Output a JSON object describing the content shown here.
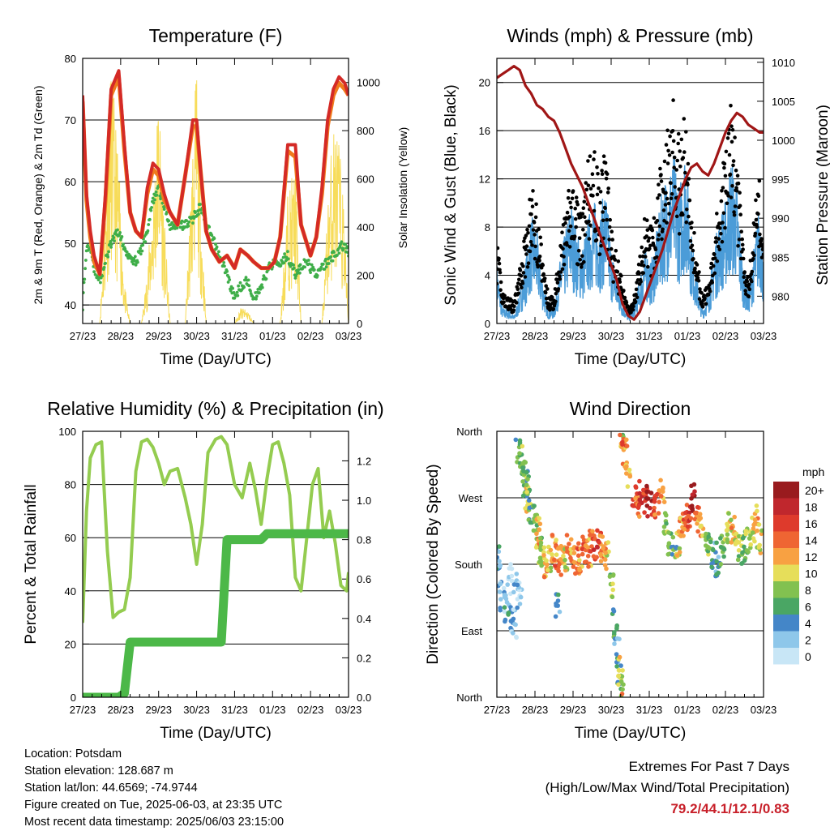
{
  "x_ticks": [
    "27/23",
    "28/23",
    "29/23",
    "30/23",
    "31/23",
    "01/23",
    "02/23",
    "03/23"
  ],
  "xlabel": "Time (Day/UTC)",
  "colors": {
    "temp2m": "#d42a26",
    "temp9m": "#f07a1c",
    "dewpoint": "#3fae49",
    "solar": "#f7dc5a",
    "gust": "#000000",
    "wind": "#4b9cd8",
    "pressure": "#a01616",
    "rh": "#94cc50",
    "precip": "#4cb848",
    "extremes": "#c8202a"
  },
  "chart_data": [
    {
      "type": "line",
      "title": "Temperature (F)",
      "xlabel": "Time (Day/UTC)",
      "ylabel": "2m & 9m T (Red, Orange) & 2m Td (Green)",
      "ylabel_right": "Solar Insolation (Yellow)",
      "ylim": [
        37,
        80
      ],
      "yticks": [
        40,
        50,
        60,
        70,
        80
      ],
      "ylim_right": [
        0,
        1100
      ],
      "yticks_right": [
        0,
        200,
        400,
        600,
        800,
        1000
      ],
      "x": [
        0,
        0.1,
        0.2,
        0.3,
        0.45,
        0.6,
        0.75,
        0.95,
        1.1,
        1.25,
        1.4,
        1.55,
        1.7,
        1.85,
        2.0,
        2.15,
        2.3,
        2.5,
        2.7,
        2.9,
        3.0,
        3.1,
        3.25,
        3.4,
        3.6,
        3.8,
        4.0,
        4.15,
        4.35,
        4.5,
        4.7,
        4.9,
        5.05,
        5.2,
        5.4,
        5.6,
        5.75,
        5.9,
        6.0,
        6.15,
        6.3,
        6.45,
        6.6,
        6.75,
        6.9,
        7.0
      ],
      "series": [
        {
          "name": "2m T",
          "values": [
            74,
            58,
            52,
            48,
            45,
            58,
            75,
            78,
            66,
            55,
            52,
            51,
            59,
            63,
            62,
            58,
            55,
            53,
            61,
            70,
            70,
            62,
            52,
            49,
            47,
            48,
            46,
            49,
            48,
            47,
            46,
            46,
            47,
            51,
            66,
            66,
            53,
            50,
            48,
            51,
            59,
            70,
            75,
            77,
            76,
            74
          ]
        },
        {
          "name": "9m T",
          "values": [
            73,
            57,
            51,
            47,
            45,
            57,
            74,
            77,
            65,
            55,
            52,
            51,
            58,
            62,
            61,
            57,
            55,
            53,
            61,
            69,
            69,
            62,
            52,
            49,
            47,
            48,
            46,
            49,
            48,
            47,
            46,
            46,
            47,
            51,
            65,
            64,
            53,
            50,
            48,
            51,
            58,
            69,
            74,
            76,
            75,
            74
          ]
        },
        {
          "name": "2m Td",
          "values": [
            40,
            49,
            50,
            46,
            44,
            47,
            50,
            52,
            49,
            48,
            47,
            49,
            52,
            57,
            59,
            56,
            53,
            53,
            53,
            54,
            55,
            56,
            53,
            51,
            48,
            45,
            41,
            43,
            44,
            41,
            43,
            46,
            47,
            47,
            48,
            45,
            46,
            47,
            46,
            45,
            46,
            47,
            48,
            49,
            50,
            48
          ]
        },
        {
          "name": "Solar",
          "values": [
            0,
            0,
            0,
            0,
            0,
            480,
            1000,
            600,
            150,
            0,
            0,
            0,
            200,
            500,
            900,
            400,
            0,
            0,
            0,
            700,
            1000,
            500,
            0,
            0,
            0,
            0,
            0,
            60,
            50,
            0,
            0,
            0,
            0,
            0,
            500,
            600,
            0,
            0,
            0,
            0,
            0,
            450,
            780,
            700,
            400,
            0
          ]
        }
      ]
    },
    {
      "type": "scatter",
      "title": "Winds (mph) & Pressure (mb)",
      "xlabel": "Time (Day/UTC)",
      "ylabel": "Sonic Wind & Gust (Blue, Black)",
      "ylabel_right": "Station Pressure (Maroon)",
      "ylim": [
        0,
        22
      ],
      "yticks": [
        0,
        4,
        8,
        12,
        16,
        20
      ],
      "ylim_right": [
        976.5,
        1010.5
      ],
      "yticks_right": [
        980,
        985,
        990,
        995,
        1000,
        1005,
        1010
      ],
      "x": [
        0,
        0.15,
        0.3,
        0.45,
        0.6,
        0.75,
        0.9,
        1.05,
        1.2,
        1.35,
        1.5,
        1.65,
        1.8,
        1.95,
        2.1,
        2.25,
        2.4,
        2.55,
        2.7,
        2.85,
        3.0,
        3.15,
        3.3,
        3.45,
        3.6,
        3.75,
        3.9,
        4.05,
        4.2,
        4.35,
        4.5,
        4.65,
        4.8,
        4.95,
        5.1,
        5.25,
        5.4,
        5.55,
        5.7,
        5.85,
        6.0,
        6.15,
        6.3,
        6.45,
        6.6,
        6.75,
        6.9,
        7.0
      ],
      "series": [
        {
          "name": "Wind",
          "values": [
            4,
            1,
            1,
            0.5,
            2,
            4,
            7,
            6,
            3,
            1,
            1,
            4,
            6,
            8,
            6,
            5,
            7,
            8,
            7,
            9,
            5,
            3,
            1.5,
            0.5,
            1,
            3,
            5,
            4,
            6,
            9,
            10,
            11,
            9,
            12,
            6,
            3,
            1,
            2,
            5,
            7,
            8,
            11,
            9,
            4,
            2,
            5,
            8,
            4
          ]
        },
        {
          "name": "Gust",
          "values": [
            6,
            2.5,
            2,
            1.5,
            4,
            7,
            10,
            9,
            5,
            2,
            2,
            6,
            8,
            11,
            9,
            8,
            12,
            13,
            10,
            13,
            7,
            5,
            3,
            1,
            2,
            5,
            8,
            7,
            9,
            13,
            15,
            17,
            13,
            16,
            9,
            5,
            2,
            3,
            7,
            10,
            13,
            16,
            13,
            6,
            3,
            8,
            11,
            6
          ]
        },
        {
          "name": "Pressure",
          "values": [
            1008,
            1008.5,
            1009,
            1009.5,
            1009,
            1007,
            1006,
            1004.5,
            1004,
            1003,
            1002.5,
            1001,
            999,
            997,
            995.5,
            994,
            992,
            990,
            988,
            986,
            984,
            982,
            979,
            977.5,
            977,
            978,
            980,
            982,
            984,
            986,
            988.5,
            991,
            993,
            995,
            996.5,
            997,
            996,
            995.5,
            997,
            999,
            1001,
            1002.5,
            1003.5,
            1003,
            1002,
            1001.5,
            1001,
            1001
          ]
        }
      ]
    },
    {
      "type": "line",
      "title": "Relative Humidity (%) & Precipitation (in)",
      "xlabel": "Time (Day/UTC)",
      "ylabel": "Percent & Total Rainfall",
      "ylim": [
        0,
        100
      ],
      "yticks": [
        0,
        20,
        40,
        60,
        80,
        100
      ],
      "ylim_right": [
        0,
        1.35
      ],
      "yticks_right": [
        0.0,
        0.2,
        0.4,
        0.6,
        0.8,
        1.0,
        1.2
      ],
      "x": [
        0,
        0.1,
        0.2,
        0.35,
        0.5,
        0.65,
        0.8,
        0.95,
        1.1,
        1.25,
        1.4,
        1.55,
        1.7,
        1.85,
        2.0,
        2.15,
        2.3,
        2.5,
        2.7,
        2.85,
        3.0,
        3.15,
        3.3,
        3.5,
        3.65,
        3.8,
        4.0,
        4.2,
        4.4,
        4.55,
        4.7,
        4.85,
        5.0,
        5.15,
        5.3,
        5.45,
        5.6,
        5.75,
        5.9,
        6.05,
        6.2,
        6.35,
        6.5,
        6.65,
        6.8,
        6.95,
        7.0
      ],
      "series": [
        {
          "name": "RH",
          "values": [
            28,
            70,
            90,
            95,
            96,
            55,
            30,
            32,
            33,
            45,
            85,
            96,
            97,
            94,
            88,
            80,
            85,
            86,
            75,
            65,
            50,
            65,
            92,
            97,
            98,
            95,
            80,
            75,
            88,
            78,
            65,
            82,
            95,
            96,
            88,
            76,
            45,
            40,
            60,
            80,
            86,
            60,
            70,
            58,
            42,
            40,
            47
          ]
        },
        {
          "name": "Precip",
          "values": [
            0,
            0,
            0,
            0,
            0,
            0,
            0,
            0,
            0.02,
            0.28,
            0.28,
            0.28,
            0.28,
            0.28,
            0.28,
            0.28,
            0.28,
            0.28,
            0.28,
            0.28,
            0.28,
            0.28,
            0.28,
            0.28,
            0.28,
            0.8,
            0.8,
            0.8,
            0.8,
            0.8,
            0.8,
            0.83,
            0.83,
            0.83,
            0.83,
            0.83,
            0.83,
            0.83,
            0.83,
            0.83,
            0.83,
            0.83,
            0.83,
            0.83,
            0.83,
            0.83,
            0.83
          ]
        }
      ]
    },
    {
      "type": "scatter",
      "title": "Wind Direction",
      "xlabel": "Time (Day/UTC)",
      "ylabel": "Direction (Colored By Speed)",
      "yticks": [
        "North",
        "East",
        "South",
        "West",
        "North"
      ],
      "ylim": [
        0,
        360
      ],
      "legend": {
        "title": "mph",
        "labels": [
          "20+",
          "18",
          "16",
          "14",
          "12",
          "10",
          "8",
          "6",
          "4",
          "2",
          "0"
        ],
        "colors": [
          "#991b1e",
          "#c0272d",
          "#de3a2c",
          "#ef6533",
          "#f8a142",
          "#e6de5a",
          "#82c150",
          "#4aa664",
          "#4486c8",
          "#8ec7ea",
          "#c8e6f6"
        ]
      },
      "points": [
        [
          0.05,
          190,
          2
        ],
        [
          0.1,
          160,
          1
        ],
        [
          0.15,
          130,
          1
        ],
        [
          0.25,
          120,
          2
        ],
        [
          0.35,
          110,
          2
        ],
        [
          0.45,
          100,
          1
        ],
        [
          0.55,
          330,
          3
        ],
        [
          0.65,
          320,
          4
        ],
        [
          0.7,
          300,
          3
        ],
        [
          0.75,
          290,
          3
        ],
        [
          0.8,
          270,
          5
        ],
        [
          0.85,
          280,
          4
        ],
        [
          0.9,
          250,
          3
        ],
        [
          1.0,
          240,
          4
        ],
        [
          1.05,
          230,
          5
        ],
        [
          1.1,
          220,
          6
        ],
        [
          1.15,
          200,
          4
        ],
        [
          1.2,
          185,
          5
        ],
        [
          1.3,
          180,
          6
        ],
        [
          1.4,
          190,
          5
        ],
        [
          1.5,
          200,
          6
        ],
        [
          1.6,
          190,
          7
        ],
        [
          1.7,
          185,
          6
        ],
        [
          1.8,
          190,
          5
        ],
        [
          1.9,
          200,
          7
        ],
        [
          2.0,
          195,
          6
        ],
        [
          2.1,
          185,
          7
        ],
        [
          2.2,
          190,
          6
        ],
        [
          2.3,
          200,
          7
        ],
        [
          2.4,
          195,
          6
        ],
        [
          2.5,
          210,
          7
        ],
        [
          2.6,
          205,
          8
        ],
        [
          2.7,
          210,
          7
        ],
        [
          2.8,
          200,
          6
        ],
        [
          2.9,
          190,
          5
        ],
        [
          3.0,
          150,
          4
        ],
        [
          3.1,
          100,
          3
        ],
        [
          3.15,
          60,
          2
        ],
        [
          3.2,
          30,
          3
        ],
        [
          3.25,
          10,
          4
        ],
        [
          3.3,
          350,
          6
        ],
        [
          3.35,
          330,
          7
        ],
        [
          3.45,
          300,
          6
        ],
        [
          3.6,
          270,
          8
        ],
        [
          3.7,
          260,
          7
        ],
        [
          3.8,
          275,
          9
        ],
        [
          3.9,
          265,
          8
        ],
        [
          4.0,
          270,
          10
        ],
        [
          4.1,
          255,
          8
        ],
        [
          4.2,
          260,
          7
        ],
        [
          4.35,
          280,
          6
        ],
        [
          4.45,
          240,
          4
        ],
        [
          4.55,
          210,
          4
        ],
        [
          4.65,
          200,
          3
        ],
        [
          4.75,
          210,
          5
        ],
        [
          4.85,
          230,
          6
        ],
        [
          4.95,
          245,
          7
        ],
        [
          5.05,
          250,
          8
        ],
        [
          5.15,
          270,
          10
        ],
        [
          5.25,
          240,
          7
        ],
        [
          5.35,
          230,
          6
        ],
        [
          5.5,
          210,
          4
        ],
        [
          5.6,
          200,
          3
        ],
        [
          5.7,
          190,
          2
        ],
        [
          5.8,
          180,
          2
        ],
        [
          5.9,
          200,
          3
        ],
        [
          6.0,
          210,
          4
        ],
        [
          6.1,
          230,
          5
        ],
        [
          6.2,
          225,
          6
        ],
        [
          6.3,
          210,
          5
        ],
        [
          6.4,
          200,
          4
        ],
        [
          6.5,
          205,
          3
        ],
        [
          6.6,
          215,
          4
        ],
        [
          6.7,
          225,
          5
        ],
        [
          6.8,
          240,
          6
        ],
        [
          6.9,
          215,
          5
        ],
        [
          0.35,
          160,
          0
        ],
        [
          0.5,
          150,
          1
        ],
        [
          0.6,
          140,
          1
        ],
        [
          1.6,
          120,
          2
        ],
        [
          3.25,
          40,
          5
        ]
      ]
    }
  ],
  "info": {
    "location": "Location: Potsdam",
    "elevation": "Station elevation: 128.687 m",
    "latlon": "Station lat/lon: 44.6569; -74.9744",
    "created": "Figure created on Tue, 2025-06-03, at 23:35 UTC",
    "recent": "Most recent data timestamp: 2025/06/03 23:15:00"
  },
  "extremes": {
    "line1": "Extremes For Past 7 Days",
    "line2": "(High/Low/Max Wind/Total Precipitation)",
    "values": "79.2/44.1/12.1/0.83"
  }
}
